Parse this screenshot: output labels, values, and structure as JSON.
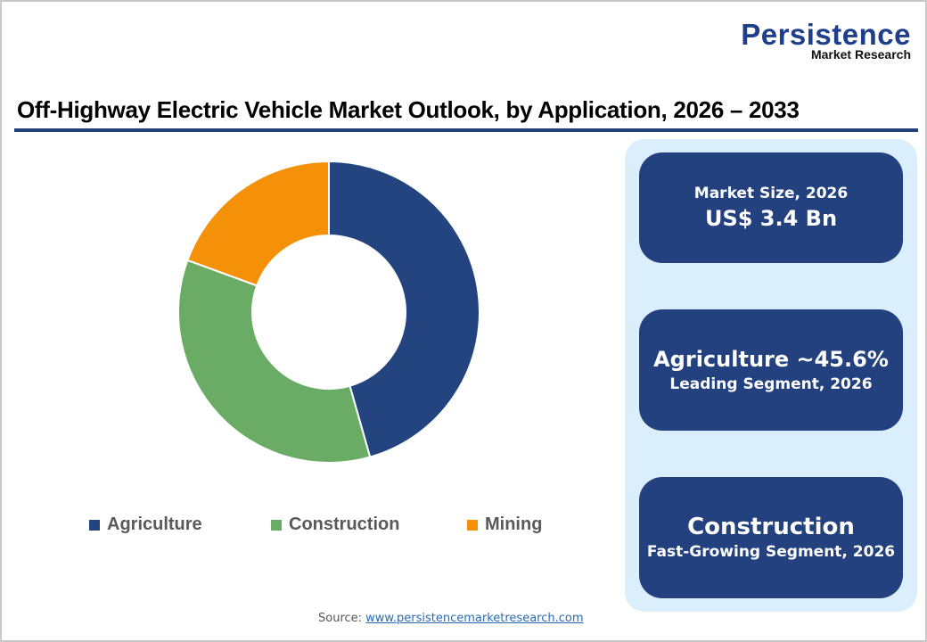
{
  "logo": {
    "main": "Persistence",
    "sub": "Market Research"
  },
  "header": {
    "title": "Off-Highway Electric Vehicle Market Outlook, by Application, 2026 – 2033"
  },
  "colors": {
    "agriculture": "#24447f",
    "construction": "#6aac65",
    "mining": "#f49108",
    "accent": "#24417a",
    "panel_bg": "#dbeefc"
  },
  "legend": [
    {
      "label": "Agriculture",
      "color": "#24447f"
    },
    {
      "label": "Construction",
      "color": "#6aac65"
    },
    {
      "label": "Mining",
      "color": "#f49108"
    }
  ],
  "cards": {
    "market_size": {
      "label": "Market Size, 2026",
      "value": "US$ 3.4 Bn"
    },
    "leading": {
      "value": "Agriculture ~45.6%",
      "label": "Leading Segment, 2026"
    },
    "fastest": {
      "value": "Construction",
      "label": "Fast-Growing Segment, 2026"
    }
  },
  "source": {
    "prefix": "Source: ",
    "link": "www.persistencemarketresearch.com"
  },
  "chart_data": {
    "type": "pie",
    "subtype": "donut",
    "title": "Off-Highway Electric Vehicle Market Outlook, by Application, 2026 – 2033",
    "categories": [
      "Agriculture",
      "Construction",
      "Mining"
    ],
    "values": [
      45.6,
      35.0,
      19.4
    ],
    "unit": "%",
    "colors": [
      "#24447f",
      "#6aac65",
      "#f49108"
    ],
    "legend_position": "bottom",
    "start_angle": "12 o'clock, clockwise"
  }
}
